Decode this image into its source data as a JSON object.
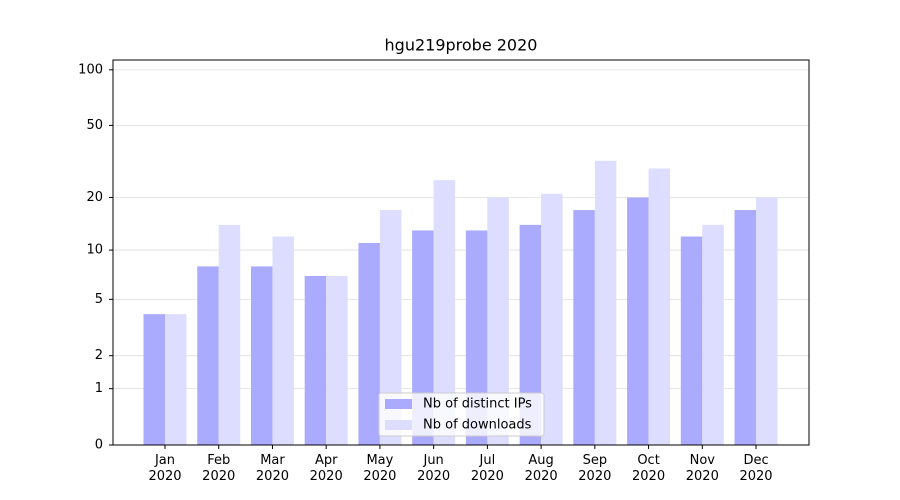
{
  "chart_data": {
    "type": "bar",
    "title": "hgu219probe 2020",
    "categories": [
      "Jan\n2020",
      "Feb\n2020",
      "Mar\n2020",
      "Apr\n2020",
      "May\n2020",
      "Jun\n2020",
      "Jul\n2020",
      "Aug\n2020",
      "Sep\n2020",
      "Oct\n2020",
      "Nov\n2020",
      "Dec\n2020"
    ],
    "series": [
      {
        "name": "Nb of distinct IPs",
        "color": "#aaaaff",
        "values": [
          4,
          8,
          8,
          7,
          11,
          13,
          13,
          14,
          17,
          20,
          12,
          17
        ]
      },
      {
        "name": "Nb of downloads",
        "color": "#ddddff",
        "values": [
          4,
          14,
          12,
          7,
          17,
          25,
          20,
          21,
          32,
          29,
          14,
          20
        ]
      }
    ],
    "y_scale": "log1p",
    "ylim": [
      0,
      113
    ],
    "yticks": [
      0,
      1,
      2,
      5,
      10,
      20,
      50,
      100
    ],
    "grid": true,
    "legend": "lower center"
  }
}
